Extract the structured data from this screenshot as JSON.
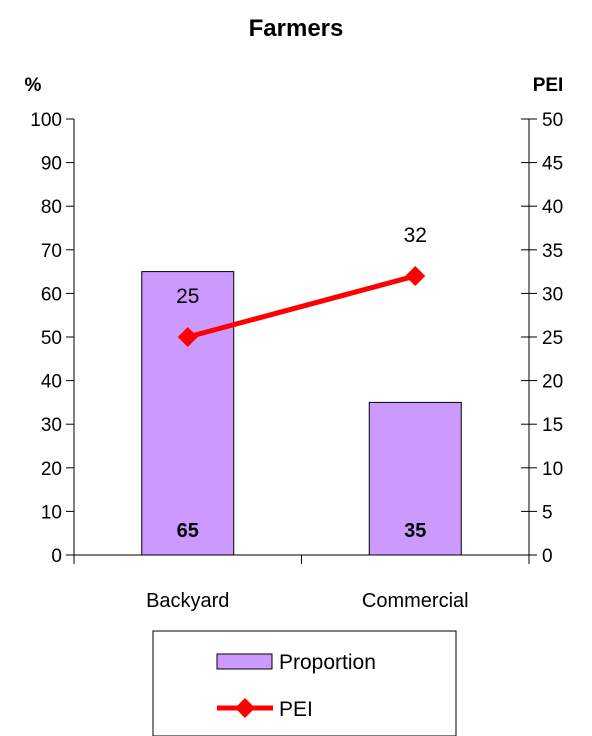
{
  "chart_data": {
    "type": "bar",
    "title": "Farmers",
    "categories": [
      "Backyard",
      "Commercial"
    ],
    "y_left": {
      "label": "%",
      "range": [
        0,
        100
      ],
      "ticks": [
        0,
        10,
        20,
        30,
        40,
        50,
        60,
        70,
        80,
        90,
        100
      ]
    },
    "y_right": {
      "label": "PEI",
      "range": [
        0,
        50
      ],
      "ticks": [
        0,
        5,
        10,
        15,
        20,
        25,
        30,
        35,
        40,
        45,
        50
      ]
    },
    "series": [
      {
        "name": "Proportion",
        "type": "bar",
        "axis": "left",
        "values": [
          65,
          35
        ],
        "color": "#cc99ff"
      },
      {
        "name": "PEI",
        "type": "line",
        "axis": "right",
        "values": [
          25,
          32
        ],
        "color": "#ff0000",
        "marker": "diamond"
      }
    ],
    "grid": false,
    "legend": {
      "position": "bottom",
      "items": [
        "Proportion",
        "PEI"
      ]
    }
  }
}
